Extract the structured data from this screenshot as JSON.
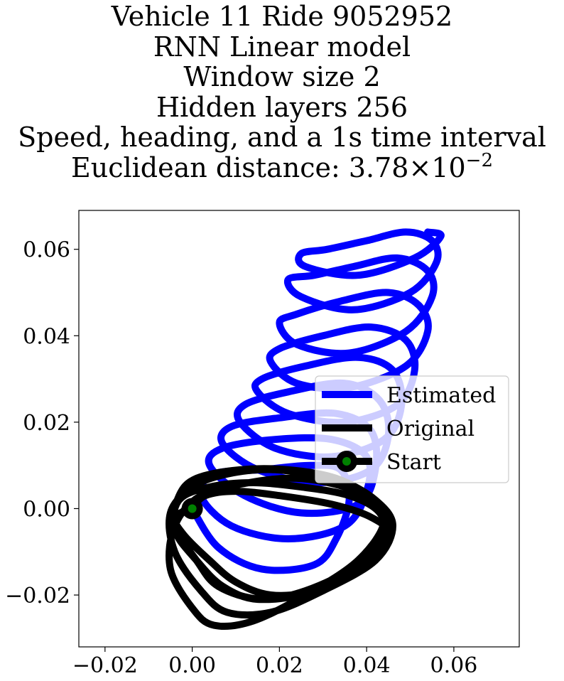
{
  "title_lines": [
    "Vehicle 11 Ride 9052952",
    "RNN Linear model",
    "Window size 2",
    "Hidden layers 256",
    "Speed, heading, and a 1s time interval"
  ],
  "distance": {
    "prefix": "Euclidean distance: ",
    "mantissa": "3.78",
    "times": "×",
    "base": "10",
    "exponent": "−2"
  },
  "chart_data": {
    "type": "line",
    "title": "Vehicle 11 Ride 9052952\nRNN Linear model\nWindow size 2\nHidden layers 256\nSpeed, heading, and a 1s time interval\nEuclidean distance: 3.78×10^-2",
    "xlabel": "",
    "ylabel": "",
    "xlim": [
      -0.026,
      0.075
    ],
    "ylim": [
      -0.032,
      0.069
    ],
    "x_ticks": [
      -0.02,
      0.0,
      0.02,
      0.04,
      0.06
    ],
    "y_ticks": [
      -0.02,
      0.0,
      0.02,
      0.04,
      0.06
    ],
    "x_tick_labels": [
      "−0.02",
      "0.00",
      "0.02",
      "0.04",
      "0.06"
    ],
    "y_tick_labels": [
      "−0.02",
      "0.00",
      "0.02",
      "0.04",
      "0.06"
    ],
    "grid": false,
    "legend_position": "center-right",
    "series": [
      {
        "name": "Estimated",
        "color": "#0000ff",
        "x": [
          0.0,
          0.006,
          0.016,
          0.028,
          0.033,
          0.036,
          0.034,
          0.027,
          0.016,
          0.005,
          0.002,
          0.009,
          0.022,
          0.035,
          0.04,
          0.04,
          0.032,
          0.019,
          0.007,
          0.004,
          0.012,
          0.025,
          0.038,
          0.042,
          0.041,
          0.033,
          0.02,
          0.009,
          0.007,
          0.015,
          0.029,
          0.041,
          0.045,
          0.043,
          0.035,
          0.022,
          0.012,
          0.011,
          0.019,
          0.032,
          0.044,
          0.048,
          0.046,
          0.038,
          0.026,
          0.016,
          0.015,
          0.022,
          0.035,
          0.047,
          0.051,
          0.049,
          0.041,
          0.03,
          0.02,
          0.018,
          0.024,
          0.036,
          0.049,
          0.054,
          0.052,
          0.045,
          0.034,
          0.024,
          0.02,
          0.024,
          0.036,
          0.049,
          0.055,
          0.054,
          0.047,
          0.037,
          0.028,
          0.022,
          0.025,
          0.037,
          0.05,
          0.056,
          0.055,
          0.049,
          0.04,
          0.031,
          0.025,
          0.026,
          0.038,
          0.051,
          0.057,
          0.054
        ],
        "y": [
          0.0,
          -0.009,
          -0.014,
          -0.013,
          -0.007,
          0.002,
          0.009,
          0.01,
          0.009,
          0.008,
          0.003,
          -0.004,
          -0.007,
          -0.004,
          0.004,
          0.012,
          0.016,
          0.016,
          0.014,
          0.01,
          0.003,
          -0.001,
          0.001,
          0.009,
          0.018,
          0.022,
          0.021,
          0.019,
          0.015,
          0.009,
          0.006,
          0.009,
          0.017,
          0.025,
          0.029,
          0.027,
          0.024,
          0.02,
          0.014,
          0.012,
          0.016,
          0.024,
          0.032,
          0.035,
          0.033,
          0.03,
          0.027,
          0.022,
          0.02,
          0.024,
          0.032,
          0.039,
          0.042,
          0.04,
          0.037,
          0.034,
          0.029,
          0.028,
          0.033,
          0.041,
          0.047,
          0.05,
          0.048,
          0.045,
          0.043,
          0.038,
          0.036,
          0.041,
          0.049,
          0.055,
          0.058,
          0.056,
          0.054,
          0.053,
          0.049,
          0.046,
          0.05,
          0.057,
          0.062,
          0.064,
          0.062,
          0.06,
          0.059,
          0.056,
          0.054,
          0.058,
          0.063,
          0.064
        ]
      },
      {
        "name": "Original",
        "color": "#000000",
        "x": [
          0.0,
          0.003,
          0.01,
          0.02,
          0.032,
          0.041,
          0.045,
          0.04,
          0.028,
          0.016,
          0.006,
          0.001,
          -0.004,
          -0.003,
          0.001,
          0.011,
          0.022,
          0.033,
          0.042,
          0.046,
          0.042,
          0.03,
          0.018,
          0.008,
          0.002,
          -0.004,
          -0.005,
          0.0,
          0.008,
          0.019,
          0.03,
          0.04,
          0.044,
          0.038,
          0.026,
          0.014,
          0.005,
          0.0,
          -0.005,
          -0.004,
          0.002,
          0.013,
          0.024,
          0.035,
          0.043,
          0.045,
          0.038,
          0.026,
          0.015,
          0.007,
          0.001,
          -0.004,
          -0.003,
          0.004,
          0.014,
          0.025,
          0.036,
          0.043,
          0.044,
          0.038,
          0.028,
          0.018,
          0.01,
          0.004,
          -0.002,
          -0.004,
          0.0
        ],
        "y": [
          0.0,
          0.003,
          0.004,
          0.003,
          0.001,
          -0.002,
          -0.006,
          -0.013,
          -0.019,
          -0.021,
          -0.018,
          -0.012,
          -0.004,
          0.003,
          0.007,
          0.009,
          0.009,
          0.007,
          0.002,
          -0.004,
          -0.012,
          -0.019,
          -0.024,
          -0.024,
          -0.019,
          -0.01,
          -0.001,
          0.005,
          0.008,
          0.009,
          0.007,
          0.003,
          -0.003,
          -0.012,
          -0.02,
          -0.026,
          -0.027,
          -0.023,
          -0.014,
          -0.004,
          0.003,
          0.006,
          0.007,
          0.005,
          0.001,
          -0.005,
          -0.013,
          -0.019,
          -0.021,
          -0.018,
          -0.012,
          -0.005,
          0.002,
          0.005,
          0.006,
          0.005,
          0.003,
          -0.001,
          -0.007,
          -0.014,
          -0.019,
          -0.02,
          -0.017,
          -0.012,
          -0.006,
          -0.002,
          0.0
        ]
      }
    ],
    "start_point": {
      "name": "Start",
      "x": 0.0,
      "y": 0.0,
      "color": "#008000",
      "edge_color": "#000000"
    },
    "legend": [
      "Estimated",
      "Original",
      "Start"
    ]
  }
}
